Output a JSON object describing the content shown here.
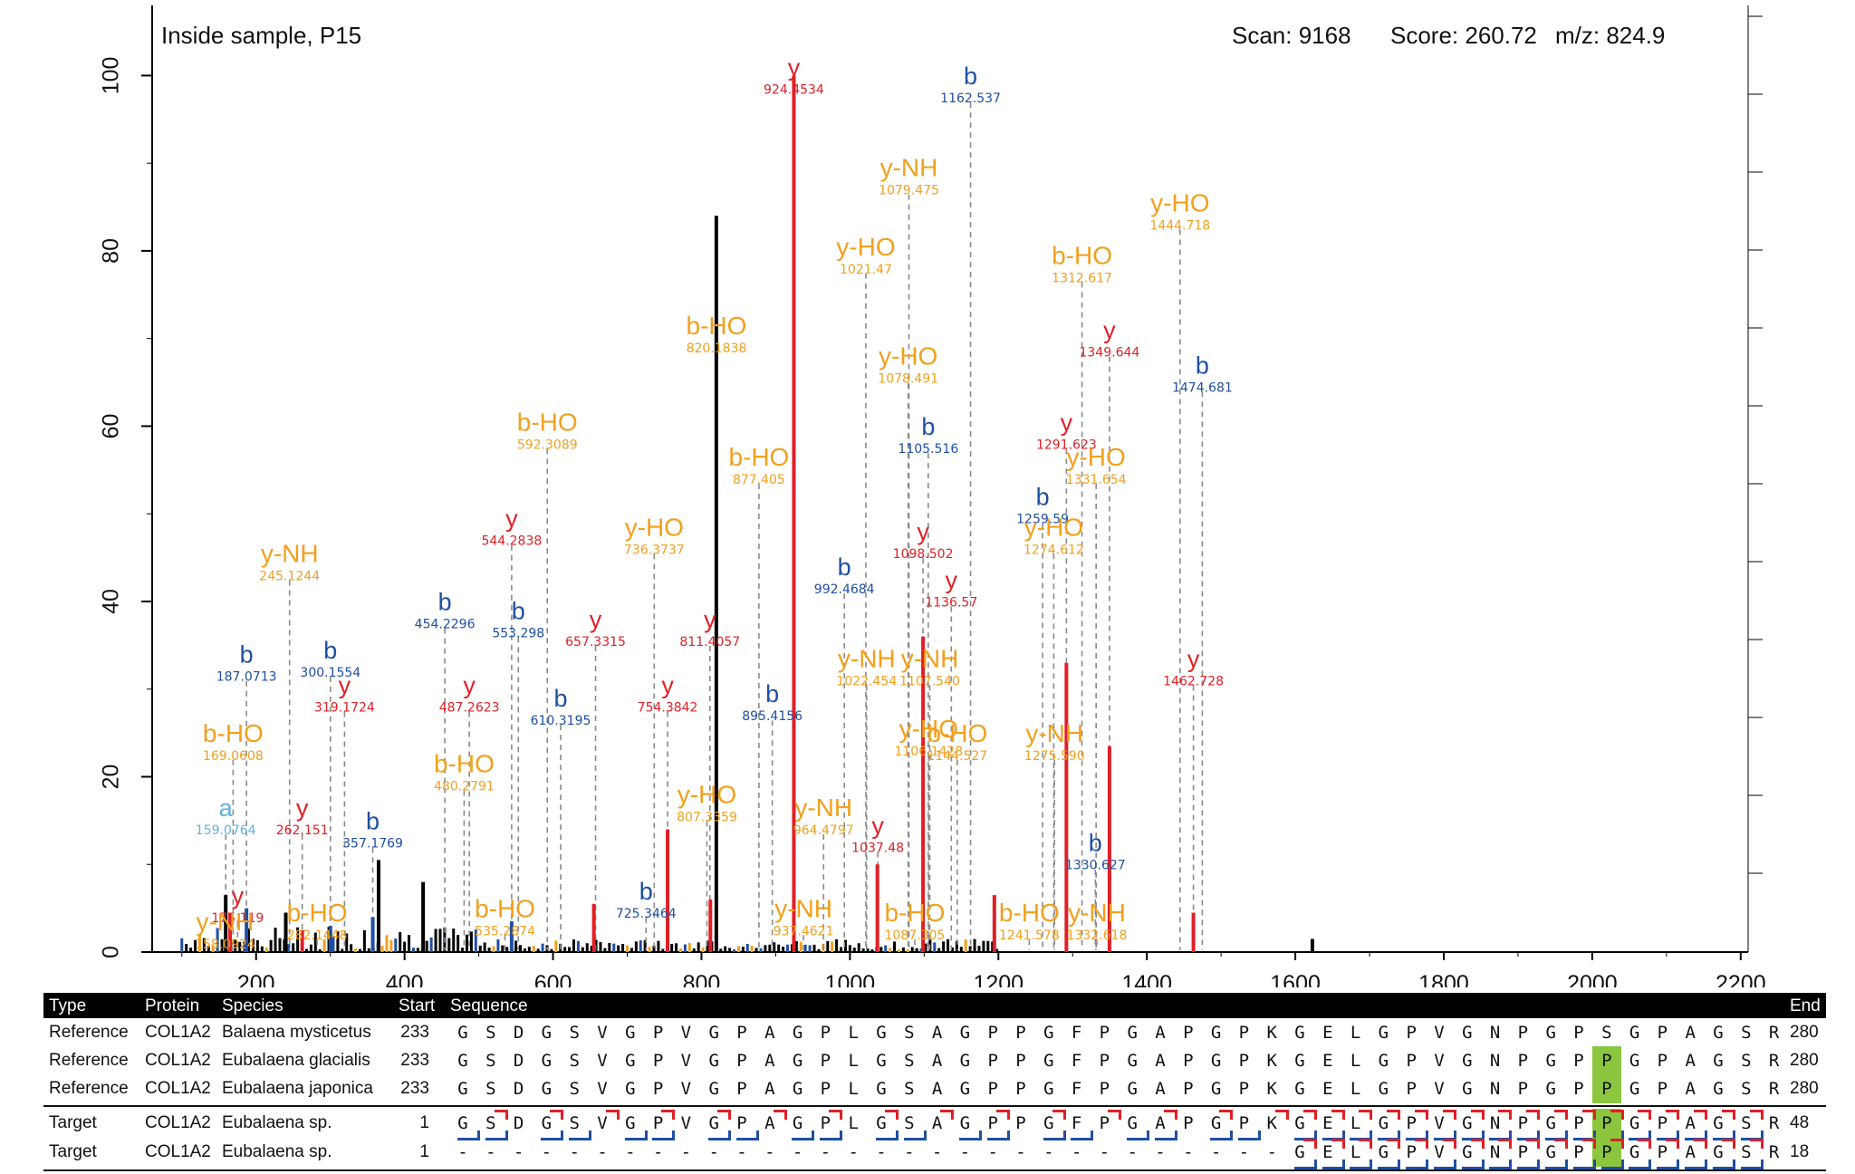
{
  "header": {
    "sample": "Inside sample, P15",
    "scan_label": "Scan: 9168",
    "score_label": "Score: 260.72",
    "mz_label": "m/z: 824.9"
  },
  "colors": {
    "y_ion": "#e11f26",
    "b_ion": "#1f4fa3",
    "neutral_loss": "#f2a01e",
    "a_ion": "#5fb2e3",
    "unassigned": "#000000",
    "highlight": "#8cc63f"
  },
  "chart_data": {
    "type": "bar",
    "xlim": [
      60,
      2210
    ],
    "ylim": [
      0,
      108
    ],
    "x_ticks": [
      200,
      400,
      600,
      800,
      1000,
      1200,
      1400,
      1600,
      1800,
      2000,
      2200
    ],
    "x_tick_labels": [
      "200",
      "400",
      "600",
      "800",
      "1000",
      "1200",
      "1400",
      "1600",
      "1800",
      "2000",
      "2200"
    ],
    "y_ticks": [
      0,
      20,
      40,
      60,
      80,
      100
    ],
    "y_tick_labels": [
      "0",
      "20",
      "40",
      "60",
      "80",
      "100"
    ],
    "peaks": [
      {
        "mz": 159.08,
        "intensity": 6.5,
        "type": "u"
      },
      {
        "mz": 165.0,
        "intensity": 4.5,
        "type": "y"
      },
      {
        "mz": 187.07,
        "intensity": 5.0,
        "type": "b"
      },
      {
        "mz": 240.0,
        "intensity": 4.5,
        "type": "u"
      },
      {
        "mz": 262.15,
        "intensity": 2.5,
        "type": "y"
      },
      {
        "mz": 300.16,
        "intensity": 3.0,
        "type": "b"
      },
      {
        "mz": 357.18,
        "intensity": 4.0,
        "type": "b"
      },
      {
        "mz": 365.0,
        "intensity": 10.5,
        "type": "u"
      },
      {
        "mz": 425.0,
        "intensity": 8.0,
        "type": "u"
      },
      {
        "mz": 544.28,
        "intensity": 3.5,
        "type": "b"
      },
      {
        "mz": 655.0,
        "intensity": 5.5,
        "type": "y"
      },
      {
        "mz": 754.38,
        "intensity": 14.0,
        "type": "y"
      },
      {
        "mz": 812.0,
        "intensity": 6.0,
        "type": "y"
      },
      {
        "mz": 820.0,
        "intensity": 84.0,
        "type": "u"
      },
      {
        "mz": 924.45,
        "intensity": 100.0,
        "type": "y"
      },
      {
        "mz": 1037.0,
        "intensity": 10.0,
        "type": "y"
      },
      {
        "mz": 1098.5,
        "intensity": 36.0,
        "type": "y"
      },
      {
        "mz": 1194.57,
        "intensity": 6.5,
        "type": "y"
      },
      {
        "mz": 1291.62,
        "intensity": 33.0,
        "type": "y"
      },
      {
        "mz": 1349.64,
        "intensity": 23.5,
        "type": "y"
      },
      {
        "mz": 1462.73,
        "intensity": 4.5,
        "type": "y"
      },
      {
        "mz": 1623.0,
        "intensity": 1.5,
        "type": "u"
      }
    ],
    "annotations": [
      {
        "mz": 924.45,
        "intensity": 100.0,
        "ion": "y",
        "label": "924.4534",
        "type": "y"
      },
      {
        "mz": 1162.54,
        "intensity": 99.0,
        "ion": "b",
        "label": "1162.537",
        "type": "b"
      },
      {
        "mz": 1079.48,
        "intensity": 88.5,
        "ion": "y-NH",
        "label": "1079.475",
        "type": "n"
      },
      {
        "mz": 1444.72,
        "intensity": 84.5,
        "ion": "y-HO",
        "label": "1444.718",
        "type": "n"
      },
      {
        "mz": 1021.47,
        "intensity": 79.5,
        "ion": "y-HO",
        "label": "1021.47",
        "type": "n"
      },
      {
        "mz": 1312.62,
        "intensity": 78.5,
        "ion": "b-HO",
        "label": "1312.617",
        "type": "n"
      },
      {
        "mz": 820.18,
        "intensity": 70.5,
        "ion": "b-HO",
        "label": "820.1838",
        "type": "n"
      },
      {
        "mz": 1349.64,
        "intensity": 70.0,
        "ion": "y",
        "label": "1349.644",
        "type": "y"
      },
      {
        "mz": 1078.49,
        "intensity": 67.0,
        "ion": "y-HO",
        "label": "1078.491",
        "type": "n"
      },
      {
        "mz": 1474.68,
        "intensity": 66.0,
        "ion": "b",
        "label": "1474.681",
        "type": "b"
      },
      {
        "mz": 1105.52,
        "intensity": 59.0,
        "ion": "b",
        "label": "1105.516",
        "type": "b"
      },
      {
        "mz": 592.31,
        "intensity": 59.5,
        "ion": "b-HO",
        "label": "592.3089",
        "type": "n"
      },
      {
        "mz": 1291.62,
        "intensity": 59.5,
        "ion": "y",
        "label": "1291.623",
        "type": "y"
      },
      {
        "mz": 877.41,
        "intensity": 55.5,
        "ion": "b-HO",
        "label": "877.405",
        "type": "n"
      },
      {
        "mz": 1331.65,
        "intensity": 55.5,
        "ion": "y-HO",
        "label": "1331.654",
        "type": "n"
      },
      {
        "mz": 1259.59,
        "intensity": 51.0,
        "ion": "b",
        "label": "1259.59",
        "type": "b"
      },
      {
        "mz": 544.28,
        "intensity": 48.5,
        "ion": "y",
        "label": "544.2838",
        "type": "y"
      },
      {
        "mz": 736.37,
        "intensity": 47.5,
        "ion": "y-HO",
        "label": "736.3737",
        "type": "n"
      },
      {
        "mz": 1098.5,
        "intensity": 47.0,
        "ion": "y",
        "label": "1098.502",
        "type": "y"
      },
      {
        "mz": 1274.61,
        "intensity": 47.5,
        "ion": "y-HO",
        "label": "1274.612",
        "type": "n"
      },
      {
        "mz": 245.12,
        "intensity": 44.5,
        "ion": "y-NH",
        "label": "245.1244",
        "type": "n"
      },
      {
        "mz": 992.47,
        "intensity": 43.0,
        "ion": "b",
        "label": "992.4684",
        "type": "b"
      },
      {
        "mz": 1136.57,
        "intensity": 41.5,
        "ion": "y",
        "label": "1136.57",
        "type": "y"
      },
      {
        "mz": 454.23,
        "intensity": 39.0,
        "ion": "b",
        "label": "454.2296",
        "type": "b"
      },
      {
        "mz": 553.3,
        "intensity": 38.0,
        "ion": "b",
        "label": "553.298",
        "type": "b"
      },
      {
        "mz": 657.33,
        "intensity": 37.0,
        "ion": "y",
        "label": "657.3315",
        "type": "y"
      },
      {
        "mz": 811.41,
        "intensity": 37.0,
        "ion": "y",
        "label": "811.4057",
        "type": "y"
      },
      {
        "mz": 187.07,
        "intensity": 33.0,
        "ion": "b",
        "label": "187.0713",
        "type": "b"
      },
      {
        "mz": 300.16,
        "intensity": 33.5,
        "ion": "b",
        "label": "300.1554",
        "type": "b"
      },
      {
        "mz": 1107.54,
        "intensity": 32.5,
        "ion": "y-NH",
        "label": "1107.540",
        "type": "n"
      },
      {
        "mz": 1022.45,
        "intensity": 32.5,
        "ion": "y-NH",
        "label": "1022.454",
        "type": "n"
      },
      {
        "mz": 1462.73,
        "intensity": 32.5,
        "ion": "y",
        "label": "1462.728",
        "type": "y"
      },
      {
        "mz": 319.17,
        "intensity": 29.5,
        "ion": "y",
        "label": "319.1724",
        "type": "y"
      },
      {
        "mz": 487.26,
        "intensity": 29.5,
        "ion": "y",
        "label": "487.2623",
        "type": "y"
      },
      {
        "mz": 754.38,
        "intensity": 29.5,
        "ion": "y",
        "label": "754.3842",
        "type": "y"
      },
      {
        "mz": 610.32,
        "intensity": 28.0,
        "ion": "b",
        "label": "610.3195",
        "type": "b"
      },
      {
        "mz": 895.42,
        "intensity": 28.5,
        "ion": "b",
        "label": "895.4156",
        "type": "b"
      },
      {
        "mz": 169.06,
        "intensity": 24.0,
        "ion": "b-HO",
        "label": "169.0608",
        "type": "n"
      },
      {
        "mz": 1106.14,
        "intensity": 24.5,
        "ion": "y-HO",
        "label": "1106.1428",
        "type": "n"
      },
      {
        "mz": 1144.53,
        "intensity": 24.0,
        "ion": "b-HO",
        "label": "1144.527",
        "type": "n"
      },
      {
        "mz": 1275.59,
        "intensity": 24.0,
        "ion": "y-NH",
        "label": "1275.590",
        "type": "n"
      },
      {
        "mz": 480.27,
        "intensity": 20.5,
        "ion": "b-HO",
        "label": "480.2791",
        "type": "n"
      },
      {
        "mz": 807.34,
        "intensity": 17.0,
        "ion": "y-HO",
        "label": "807.3359",
        "type": "n"
      },
      {
        "mz": 159.08,
        "intensity": 15.5,
        "ion": "a",
        "label": "159.0764",
        "type": "a"
      },
      {
        "mz": 262.15,
        "intensity": 15.5,
        "ion": "y",
        "label": "262.151",
        "type": "y"
      },
      {
        "mz": 357.18,
        "intensity": 14.0,
        "ion": "b",
        "label": "357.1769",
        "type": "b"
      },
      {
        "mz": 964.48,
        "intensity": 15.5,
        "ion": "y-NH",
        "label": "964.4797",
        "type": "n"
      },
      {
        "mz": 1037.48,
        "intensity": 13.5,
        "ion": "y",
        "label": "1037.48",
        "type": "y"
      },
      {
        "mz": 1330.63,
        "intensity": 11.5,
        "ion": "b",
        "label": "1330.627",
        "type": "b"
      },
      {
        "mz": 175.12,
        "intensity": 5.5,
        "ion": "y",
        "label": "175.119",
        "type": "y"
      },
      {
        "mz": 725.35,
        "intensity": 6.0,
        "ion": "b",
        "label": "725.3464",
        "type": "b"
      },
      {
        "mz": 158.09,
        "intensity": 2.5,
        "ion": "y-NH",
        "label": "158.0924",
        "type": "n"
      },
      {
        "mz": 282.14,
        "intensity": 3.5,
        "ion": "b-HO",
        "label": "282.1448",
        "type": "n"
      },
      {
        "mz": 535.29,
        "intensity": 4.0,
        "ion": "b-HO",
        "label": "535.2874",
        "type": "n"
      },
      {
        "mz": 937.46,
        "intensity": 4.0,
        "ion": "y-NH",
        "label": "937.4621",
        "type": "n"
      },
      {
        "mz": 1241.58,
        "intensity": 3.5,
        "ion": "b-HO",
        "label": "1241.578",
        "type": "n"
      },
      {
        "mz": 1087.31,
        "intensity": 3.5,
        "ion": "b-HO",
        "label": "1087.305",
        "type": "n"
      },
      {
        "mz": 1332.62,
        "intensity": 3.5,
        "ion": "y-NH",
        "label": "1332.618",
        "type": "n"
      }
    ]
  },
  "sequence_table": {
    "headers": {
      "type": "Type",
      "protein": "Protein",
      "species": "Species",
      "start": "Start",
      "sequence": "Sequence",
      "end": "End"
    },
    "rows": [
      {
        "type": "Reference",
        "protein": "COL1A2",
        "species": "Balaena mysticetus",
        "start": "233",
        "end": "280",
        "residues": [
          "G",
          "S",
          "D",
          "G",
          "S",
          "V",
          "G",
          "P",
          "V",
          "G",
          "P",
          "A",
          "G",
          "P",
          "L",
          "G",
          "S",
          "A",
          "G",
          "P",
          "P",
          "G",
          "F",
          "P",
          "G",
          "A",
          "P",
          "G",
          "P",
          "K",
          "G",
          "E",
          "L",
          "G",
          "P",
          "V",
          "G",
          "N",
          "P",
          "G",
          "P",
          "S",
          "G",
          "P",
          "A",
          "G",
          "S",
          "R"
        ],
        "highlight": -1
      },
      {
        "type": "Reference",
        "protein": "COL1A2",
        "species": "Eubalaena glacialis",
        "start": "233",
        "end": "280",
        "residues": [
          "G",
          "S",
          "D",
          "G",
          "S",
          "V",
          "G",
          "P",
          "V",
          "G",
          "P",
          "A",
          "G",
          "P",
          "L",
          "G",
          "S",
          "A",
          "G",
          "P",
          "P",
          "G",
          "F",
          "P",
          "G",
          "A",
          "P",
          "G",
          "P",
          "K",
          "G",
          "E",
          "L",
          "G",
          "P",
          "V",
          "G",
          "N",
          "P",
          "G",
          "P",
          "P",
          "G",
          "P",
          "A",
          "G",
          "S",
          "R"
        ],
        "highlight": 41
      },
      {
        "type": "Reference",
        "protein": "COL1A2",
        "species": "Eubalaena japonica",
        "start": "233",
        "end": "280",
        "residues": [
          "G",
          "S",
          "D",
          "G",
          "S",
          "V",
          "G",
          "P",
          "V",
          "G",
          "P",
          "A",
          "G",
          "P",
          "L",
          "G",
          "S",
          "A",
          "G",
          "P",
          "P",
          "G",
          "F",
          "P",
          "G",
          "A",
          "P",
          "G",
          "P",
          "K",
          "G",
          "E",
          "L",
          "G",
          "P",
          "V",
          "G",
          "N",
          "P",
          "G",
          "P",
          "P",
          "G",
          "P",
          "A",
          "G",
          "S",
          "R"
        ],
        "highlight": 41
      },
      {
        "type": "Target",
        "protein": "COL1A2",
        "species": "Eubalaena sp.",
        "start": "1",
        "end": "48",
        "residues": [
          "G",
          "S",
          "D",
          "G",
          "S",
          "V",
          "G",
          "P",
          "V",
          "G",
          "P",
          "A",
          "G",
          "P",
          "L",
          "G",
          "S",
          "A",
          "G",
          "P",
          "P",
          "G",
          "F",
          "P",
          "G",
          "A",
          "P",
          "G",
          "P",
          "K",
          "G",
          "E",
          "L",
          "G",
          "P",
          "V",
          "G",
          "N",
          "P",
          "G",
          "P",
          "P",
          "G",
          "P",
          "A",
          "G",
          "S",
          "R"
        ],
        "highlight": 41
      },
      {
        "type": "Target",
        "protein": "COL1A2",
        "species": "Eubalaena sp.",
        "start": "1",
        "end": "18",
        "residues": [
          "-",
          "-",
          "-",
          "-",
          "-",
          "-",
          "-",
          "-",
          "-",
          "-",
          "-",
          "-",
          "-",
          "-",
          "-",
          "-",
          "-",
          "-",
          "-",
          "-",
          "-",
          "-",
          "-",
          "-",
          "-",
          "-",
          "-",
          "-",
          "-",
          "-",
          "G",
          "E",
          "L",
          "G",
          "P",
          "V",
          "G",
          "N",
          "P",
          "G",
          "P",
          "P",
          "G",
          "P",
          "A",
          "G",
          "S",
          "R"
        ],
        "highlight": 41
      }
    ]
  }
}
